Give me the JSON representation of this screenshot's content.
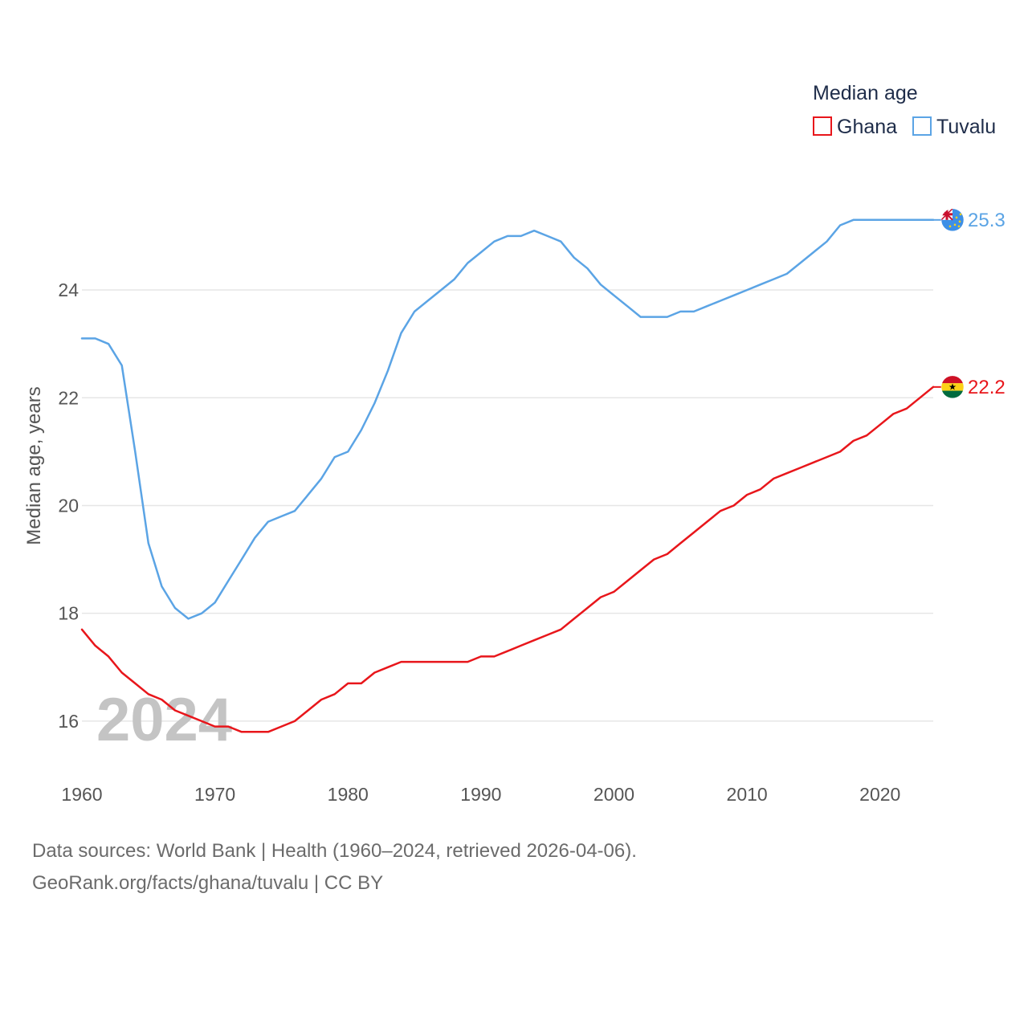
{
  "chart_data": {
    "type": "line",
    "title": "",
    "legend_title": "Median age",
    "ylabel": "Median age, years",
    "xlabel": "",
    "xlim": [
      1960,
      2024
    ],
    "ylim": [
      15,
      26.4
    ],
    "x_ticks": [
      1960,
      1970,
      1980,
      1990,
      2000,
      2010,
      2020
    ],
    "y_ticks": [
      16,
      18,
      20,
      22,
      24
    ],
    "grid": true,
    "legend_position": "top-right",
    "year_watermark": "2024",
    "x": [
      1960,
      1961,
      1962,
      1963,
      1964,
      1965,
      1966,
      1967,
      1968,
      1969,
      1970,
      1971,
      1972,
      1973,
      1974,
      1975,
      1976,
      1977,
      1978,
      1979,
      1980,
      1981,
      1982,
      1983,
      1984,
      1985,
      1986,
      1987,
      1988,
      1989,
      1990,
      1991,
      1992,
      1993,
      1994,
      1995,
      1996,
      1997,
      1998,
      1999,
      2000,
      2001,
      2002,
      2003,
      2004,
      2005,
      2006,
      2007,
      2008,
      2009,
      2010,
      2011,
      2012,
      2013,
      2014,
      2015,
      2016,
      2017,
      2018,
      2019,
      2020,
      2021,
      2022,
      2023,
      2024
    ],
    "series": [
      {
        "name": "Ghana",
        "color": "#e8161b",
        "end_label": "22.2",
        "flag": "ghana-flag",
        "values": [
          17.7,
          17.4,
          17.2,
          16.9,
          16.7,
          16.5,
          16.4,
          16.2,
          16.1,
          16.0,
          15.9,
          15.9,
          15.8,
          15.8,
          15.8,
          15.9,
          16.0,
          16.2,
          16.4,
          16.5,
          16.7,
          16.7,
          16.9,
          17.0,
          17.1,
          17.1,
          17.1,
          17.1,
          17.1,
          17.1,
          17.2,
          17.2,
          17.3,
          17.4,
          17.5,
          17.6,
          17.7,
          17.9,
          18.1,
          18.3,
          18.4,
          18.6,
          18.8,
          19.0,
          19.1,
          19.3,
          19.5,
          19.7,
          19.9,
          20.0,
          20.2,
          20.3,
          20.5,
          20.6,
          20.7,
          20.8,
          20.9,
          21.0,
          21.2,
          21.3,
          21.5,
          21.7,
          21.8,
          22.0,
          22.2
        ]
      },
      {
        "name": "Tuvalu",
        "color": "#5ba4e5",
        "end_label": "25.3",
        "flag": "tuvalu-flag",
        "values": [
          23.1,
          23.1,
          23.0,
          22.6,
          21.0,
          19.3,
          18.5,
          18.1,
          17.9,
          18.0,
          18.2,
          18.6,
          19.0,
          19.4,
          19.7,
          19.8,
          19.9,
          20.2,
          20.5,
          20.9,
          21.0,
          21.4,
          21.9,
          22.5,
          23.2,
          23.6,
          23.8,
          24.0,
          24.2,
          24.5,
          24.7,
          24.9,
          25.0,
          25.0,
          25.1,
          25.0,
          24.9,
          24.6,
          24.4,
          24.1,
          23.9,
          23.7,
          23.5,
          23.5,
          23.5,
          23.6,
          23.6,
          23.7,
          23.8,
          23.9,
          24.0,
          24.1,
          24.2,
          24.3,
          24.5,
          24.7,
          24.9,
          25.2,
          25.3,
          25.3,
          25.3,
          25.3,
          25.3,
          25.3,
          25.3
        ]
      }
    ]
  },
  "footer": {
    "line1": "Data sources: World Bank | Health (1960–2024, retrieved 2026-04-06).",
    "line2": "GeoRank.org/facts/ghana/tuvalu | CC BY"
  }
}
